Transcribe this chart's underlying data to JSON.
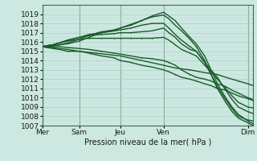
{
  "xlabel": "Pression niveau de la mer( hPa )",
  "ylim": [
    1007,
    1020
  ],
  "yticks": [
    1007,
    1008,
    1009,
    1010,
    1011,
    1012,
    1013,
    1014,
    1015,
    1016,
    1017,
    1018,
    1019
  ],
  "xtick_labels": [
    "Mer",
    "Sam",
    "Jeu",
    "Ven",
    "Dim"
  ],
  "xtick_positions": [
    0,
    0.175,
    0.37,
    0.575,
    0.975
  ],
  "bg_color": "#cce8e0",
  "grid_color_major": "#aacfc8",
  "grid_color_minor": "#bcddd6",
  "line_color": "#1a5c2a",
  "figsize": [
    3.2,
    2.0
  ],
  "dpi": 100,
  "lines": [
    {
      "x": [
        0,
        0.02,
        0.05,
        0.08,
        0.12,
        0.175,
        0.22,
        0.28,
        0.34,
        0.37,
        0.42,
        0.47,
        0.52,
        0.575,
        0.6,
        0.63,
        0.66,
        0.7,
        0.73,
        0.77,
        0.8,
        0.83,
        0.87,
        0.9,
        0.93,
        0.975,
        1.0
      ],
      "y": [
        1015.5,
        1015.5,
        1015.6,
        1015.7,
        1015.8,
        1016.1,
        1016.5,
        1017.0,
        1017.2,
        1017.5,
        1017.8,
        1018.3,
        1018.8,
        1019.2,
        1018.8,
        1018.3,
        1017.5,
        1016.5,
        1015.8,
        1014.5,
        1013.0,
        1011.5,
        1010.0,
        1009.0,
        1008.2,
        1007.5,
        1007.2
      ]
    },
    {
      "x": [
        0,
        0.02,
        0.05,
        0.08,
        0.12,
        0.175,
        0.22,
        0.28,
        0.34,
        0.37,
        0.42,
        0.47,
        0.52,
        0.575,
        0.6,
        0.63,
        0.66,
        0.7,
        0.73,
        0.77,
        0.8,
        0.83,
        0.87,
        0.9,
        0.93,
        0.975,
        1.0
      ],
      "y": [
        1015.5,
        1015.5,
        1015.6,
        1015.7,
        1015.9,
        1016.3,
        1016.7,
        1017.1,
        1017.3,
        1017.5,
        1017.9,
        1018.3,
        1018.7,
        1018.9,
        1018.5,
        1017.8,
        1017.2,
        1016.3,
        1015.5,
        1014.0,
        1012.5,
        1011.0,
        1009.5,
        1008.5,
        1007.8,
        1007.3,
        1007.0
      ]
    },
    {
      "x": [
        0,
        0.02,
        0.05,
        0.08,
        0.12,
        0.175,
        0.22,
        0.28,
        0.34,
        0.37,
        0.42,
        0.47,
        0.52,
        0.575,
        0.6,
        0.63,
        0.66,
        0.7,
        0.73,
        0.77,
        0.8,
        0.83,
        0.87,
        0.9,
        0.93,
        0.975,
        1.0
      ],
      "y": [
        1015.5,
        1015.6,
        1015.7,
        1015.9,
        1016.2,
        1016.5,
        1016.8,
        1017.0,
        1017.2,
        1017.3,
        1017.5,
        1017.8,
        1018.0,
        1018.0,
        1017.5,
        1016.8,
        1016.2,
        1015.5,
        1015.0,
        1013.8,
        1012.5,
        1011.2,
        1009.8,
        1008.8,
        1008.0,
        1007.6,
        1007.5
      ]
    },
    {
      "x": [
        0,
        0.02,
        0.05,
        0.08,
        0.12,
        0.175,
        0.22,
        0.28,
        0.34,
        0.37,
        0.42,
        0.47,
        0.52,
        0.575,
        0.6,
        0.63,
        0.66,
        0.7,
        0.73,
        0.77,
        0.8,
        0.83,
        0.87,
        0.9,
        0.93,
        0.975,
        1.0
      ],
      "y": [
        1015.5,
        1015.6,
        1015.7,
        1015.9,
        1016.2,
        1016.5,
        1016.7,
        1016.8,
        1016.9,
        1017.0,
        1017.0,
        1017.1,
        1017.2,
        1017.5,
        1017.0,
        1016.5,
        1015.8,
        1015.2,
        1015.0,
        1013.8,
        1013.0,
        1012.2,
        1010.8,
        1009.8,
        1009.0,
        1008.5,
        1008.3
      ]
    },
    {
      "x": [
        0,
        0.02,
        0.05,
        0.08,
        0.12,
        0.175,
        0.22,
        0.28,
        0.34,
        0.37,
        0.42,
        0.47,
        0.52,
        0.575,
        0.6,
        0.63,
        0.66,
        0.7,
        0.73,
        0.77,
        0.8,
        0.83,
        0.87,
        0.9,
        0.93,
        0.975,
        1.0
      ],
      "y": [
        1015.5,
        1015.6,
        1015.7,
        1015.9,
        1016.1,
        1016.3,
        1016.4,
        1016.4,
        1016.4,
        1016.4,
        1016.4,
        1016.4,
        1016.4,
        1016.5,
        1016.2,
        1015.7,
        1015.2,
        1014.8,
        1014.5,
        1013.5,
        1012.8,
        1012.0,
        1011.0,
        1010.2,
        1009.5,
        1009.0,
        1008.9
      ]
    },
    {
      "x": [
        0,
        0.02,
        0.05,
        0.08,
        0.12,
        0.175,
        0.22,
        0.28,
        0.34,
        0.37,
        0.42,
        0.47,
        0.52,
        0.575,
        0.6,
        0.63,
        0.66,
        0.7,
        0.73,
        0.77,
        0.8,
        0.83,
        0.87,
        0.9,
        0.93,
        0.975,
        1.0
      ],
      "y": [
        1015.5,
        1015.5,
        1015.5,
        1015.5,
        1015.4,
        1015.3,
        1015.2,
        1015.0,
        1014.8,
        1014.7,
        1014.5,
        1014.3,
        1014.2,
        1014.0,
        1013.8,
        1013.5,
        1013.0,
        1012.5,
        1012.2,
        1012.0,
        1011.8,
        1011.5,
        1011.2,
        1010.8,
        1010.5,
        1010.0,
        1009.8
      ]
    },
    {
      "x": [
        0,
        0.02,
        0.05,
        0.08,
        0.12,
        0.175,
        0.22,
        0.28,
        0.34,
        0.37,
        0.42,
        0.47,
        0.52,
        0.575,
        0.6,
        0.63,
        0.66,
        0.7,
        0.73,
        0.77,
        0.8,
        0.83,
        0.87,
        0.9,
        0.93,
        0.975,
        1.0
      ],
      "y": [
        1015.5,
        1015.5,
        1015.4,
        1015.3,
        1015.2,
        1015.0,
        1014.8,
        1014.5,
        1014.3,
        1014.0,
        1013.8,
        1013.5,
        1013.3,
        1013.0,
        1012.8,
        1012.5,
        1012.2,
        1012.0,
        1011.8,
        1011.5,
        1011.3,
        1011.0,
        1010.8,
        1010.5,
        1010.2,
        1009.9,
        1009.7
      ]
    },
    {
      "x": [
        0,
        0.02,
        0.05,
        0.08,
        0.12,
        0.175,
        0.37,
        0.575,
        0.63,
        0.7,
        0.77,
        0.83,
        0.87,
        0.93,
        0.975,
        1.0
      ],
      "y": [
        1015.5,
        1015.4,
        1015.3,
        1015.2,
        1015.0,
        1015.0,
        1014.5,
        1013.5,
        1013.2,
        1013.0,
        1012.7,
        1012.5,
        1012.2,
        1011.8,
        1011.5,
        1011.3
      ]
    }
  ]
}
